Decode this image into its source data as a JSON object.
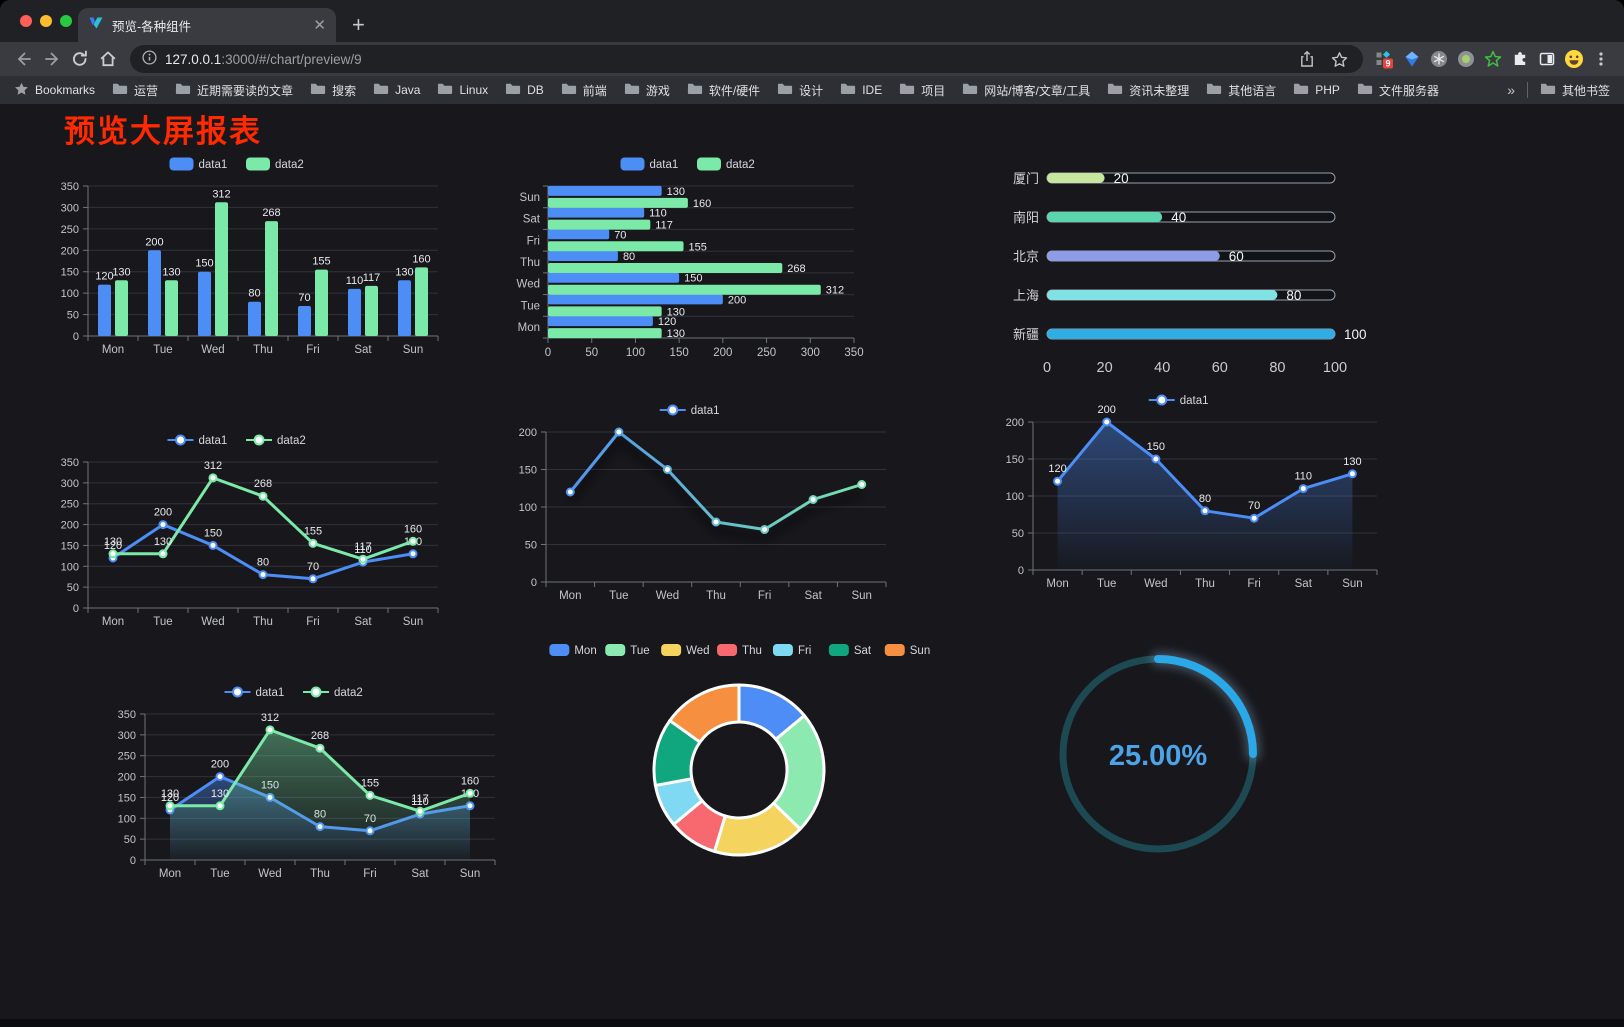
{
  "browser": {
    "tab_title": "预览-各种组件",
    "url_host": "127.0.0.1",
    "url_rest": ":3000/#/chart/preview/9",
    "extension_badge": "9",
    "bookmarks": [
      "Bookmarks",
      "运营",
      "近期需要读的文章",
      "搜索",
      "Java",
      "Linux",
      "DB",
      "前端",
      "游戏",
      "软件/硬件",
      "设计",
      "IDE",
      "项目",
      "网站/博客/文章/工具",
      "资讯未整理",
      "其他语言",
      "PHP",
      "文件服务器"
    ],
    "bookmarks_overflow": "»",
    "other_bookmarks": "其他书签"
  },
  "page": {
    "title": "预览大屏报表",
    "title_color": "#ff2a00",
    "background": "#17171c"
  },
  "chart_data": [
    {
      "id": "c1",
      "type": "bar",
      "categories": [
        "Mon",
        "Tue",
        "Wed",
        "Thu",
        "Fri",
        "Sat",
        "Sun"
      ],
      "series": [
        {
          "name": "data1",
          "color": "#4c8df6",
          "values": [
            120,
            200,
            150,
            80,
            70,
            110,
            130
          ]
        },
        {
          "name": "data2",
          "color": "#7be9a7",
          "values": [
            130,
            130,
            312,
            268,
            155,
            117,
            160
          ]
        }
      ],
      "ylim": [
        0,
        350
      ],
      "ystep": 50,
      "legend_position": "top",
      "grid": true
    },
    {
      "id": "c2",
      "type": "hbar",
      "categories": [
        "Mon",
        "Tue",
        "Wed",
        "Thu",
        "Fri",
        "Sat",
        "Sun"
      ],
      "series": [
        {
          "name": "data1",
          "color": "#4c8df6",
          "values": [
            120,
            200,
            150,
            80,
            70,
            110,
            130
          ]
        },
        {
          "name": "data2",
          "color": "#7be9a7",
          "values": [
            130,
            130,
            312,
            268,
            155,
            117,
            160
          ]
        }
      ],
      "xlim": [
        0,
        350
      ],
      "xstep": 50,
      "legend_position": "top",
      "grid": true
    },
    {
      "id": "c3",
      "type": "progress",
      "categories": [
        "厦门",
        "南阳",
        "北京",
        "上海",
        "新疆"
      ],
      "values": [
        20,
        40,
        60,
        80,
        100
      ],
      "colors": [
        "#c7e79f",
        "#5bd6ac",
        "#8c9ce6",
        "#81e2e6",
        "#31ade6"
      ],
      "xlim": [
        0,
        100
      ],
      "xticks": [
        0,
        20,
        40,
        60,
        80,
        100
      ]
    },
    {
      "id": "c4",
      "type": "line",
      "categories": [
        "Mon",
        "Tue",
        "Wed",
        "Thu",
        "Fri",
        "Sat",
        "Sun"
      ],
      "series": [
        {
          "name": "data1",
          "color": "#4c8df6",
          "values": [
            120,
            200,
            150,
            80,
            70,
            110,
            130
          ]
        },
        {
          "name": "data2",
          "color": "#7be9a7",
          "values": [
            130,
            130,
            312,
            268,
            155,
            117,
            160
          ]
        }
      ],
      "ylim": [
        0,
        350
      ],
      "ystep": 50,
      "labels": true,
      "legend_position": "top",
      "grid": true
    },
    {
      "id": "c5",
      "type": "line",
      "categories": [
        "Mon",
        "Tue",
        "Wed",
        "Thu",
        "Fri",
        "Sat",
        "Sun"
      ],
      "series": [
        {
          "name": "data1",
          "gradient": [
            "#4c8df6",
            "#7be9a7"
          ],
          "values": [
            120,
            200,
            150,
            80,
            70,
            110,
            130
          ]
        }
      ],
      "ylim": [
        0,
        200
      ],
      "ystep": 50,
      "labels": false,
      "shadow": true,
      "legend_position": "top",
      "grid": true
    },
    {
      "id": "c6",
      "type": "line",
      "categories": [
        "Mon",
        "Tue",
        "Wed",
        "Thu",
        "Fri",
        "Sat",
        "Sun"
      ],
      "series": [
        {
          "name": "data1",
          "color": "#4c8df6",
          "area": true,
          "values": [
            120,
            200,
            150,
            80,
            70,
            110,
            130
          ]
        }
      ],
      "ylim": [
        0,
        200
      ],
      "ystep": 50,
      "labels": true,
      "legend_position": "top",
      "grid": true
    },
    {
      "id": "c7",
      "type": "line",
      "categories": [
        "Mon",
        "Tue",
        "Wed",
        "Thu",
        "Fri",
        "Sat",
        "Sun"
      ],
      "series": [
        {
          "name": "data1",
          "color": "#4c8df6",
          "area": true,
          "values": [
            120,
            200,
            150,
            80,
            70,
            110,
            130
          ]
        },
        {
          "name": "data2",
          "color": "#7be9a7",
          "area": true,
          "values": [
            130,
            130,
            312,
            268,
            155,
            117,
            160
          ]
        }
      ],
      "ylim": [
        0,
        350
      ],
      "ystep": 50,
      "labels": true,
      "legend_position": "top",
      "grid": true
    },
    {
      "id": "c8",
      "type": "donut",
      "categories": [
        "Mon",
        "Tue",
        "Wed",
        "Thu",
        "Fri",
        "Sat",
        "Sun"
      ],
      "values": [
        120,
        200,
        150,
        80,
        70,
        110,
        130
      ],
      "colors": [
        "#4d8df5",
        "#8ceab0",
        "#f4d35e",
        "#f8696f",
        "#7fd9f2",
        "#10a77f",
        "#f68f3f"
      ],
      "legend_position": "top"
    },
    {
      "id": "c9",
      "type": "gauge",
      "value": 25,
      "label": "25.00%",
      "color": "#2aa8e8",
      "track": "#1d4953",
      "text_color": "#4ba4e8"
    }
  ]
}
